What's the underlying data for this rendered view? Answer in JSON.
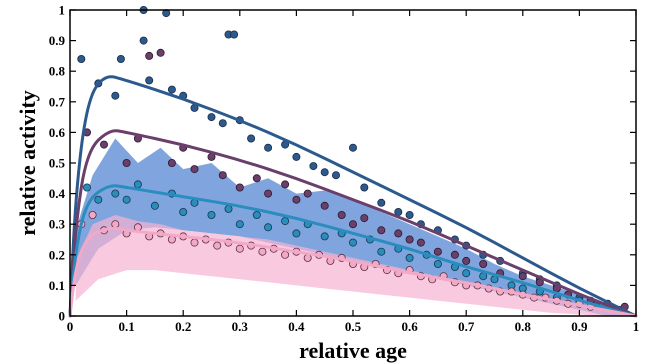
{
  "chart_data": {
    "type": "scatter",
    "xlabel": "relative age",
    "ylabel": "relative activity",
    "xlim": [
      0,
      1
    ],
    "ylim": [
      0,
      1
    ],
    "x_ticks": [
      "0",
      "0.1",
      "0.2",
      "0.3",
      "0.4",
      "0.5",
      "0.6",
      "0.7",
      "0.8",
      "0.9",
      "1"
    ],
    "y_ticks": [
      "0",
      "0.1",
      "0.2",
      "0.3",
      "0.4",
      "0.5",
      "0.6",
      "0.7",
      "0.8",
      "0.9",
      "1"
    ],
    "grid": false,
    "series": [
      {
        "color": "#2d5a8e",
        "edge": "#1a2b45",
        "fit_curve": [
          [
            0,
            0
          ],
          [
            0.01,
            0.4
          ],
          [
            0.03,
            0.7
          ],
          [
            0.06,
            0.79
          ],
          [
            0.1,
            0.77
          ],
          [
            0.2,
            0.71
          ],
          [
            0.3,
            0.64
          ],
          [
            0.4,
            0.56
          ],
          [
            0.5,
            0.47
          ],
          [
            0.6,
            0.38
          ],
          [
            0.7,
            0.29
          ],
          [
            0.8,
            0.19
          ],
          [
            0.9,
            0.09
          ],
          [
            1,
            0
          ]
        ],
        "points": [
          [
            0.02,
            0.84
          ],
          [
            0.05,
            0.76
          ],
          [
            0.08,
            0.72
          ],
          [
            0.09,
            0.84
          ],
          [
            0.13,
            1.0
          ],
          [
            0.13,
            0.9
          ],
          [
            0.14,
            0.77
          ],
          [
            0.17,
            0.99
          ],
          [
            0.18,
            0.74
          ],
          [
            0.2,
            0.72
          ],
          [
            0.22,
            0.68
          ],
          [
            0.25,
            0.65
          ],
          [
            0.27,
            0.63
          ],
          [
            0.28,
            0.92
          ],
          [
            0.29,
            0.92
          ],
          [
            0.3,
            0.64
          ],
          [
            0.32,
            0.58
          ],
          [
            0.35,
            0.55
          ],
          [
            0.38,
            0.56
          ],
          [
            0.4,
            0.52
          ],
          [
            0.43,
            0.49
          ],
          [
            0.45,
            0.47
          ],
          [
            0.47,
            0.46
          ],
          [
            0.5,
            0.55
          ],
          [
            0.52,
            0.42
          ],
          [
            0.55,
            0.37
          ],
          [
            0.58,
            0.34
          ],
          [
            0.6,
            0.33
          ],
          [
            0.62,
            0.3
          ],
          [
            0.65,
            0.28
          ],
          [
            0.68,
            0.25
          ],
          [
            0.7,
            0.23
          ],
          [
            0.73,
            0.2
          ],
          [
            0.76,
            0.18
          ],
          [
            0.8,
            0.14
          ],
          [
            0.83,
            0.12
          ],
          [
            0.86,
            0.1
          ],
          [
            0.9,
            0.06
          ],
          [
            0.93,
            0.04
          ],
          [
            0.97,
            0.02
          ]
        ]
      },
      {
        "color": "#6a3f6b",
        "edge": "#2a1a2b",
        "fit_curve": [
          [
            0,
            0
          ],
          [
            0.01,
            0.3
          ],
          [
            0.03,
            0.54
          ],
          [
            0.07,
            0.61
          ],
          [
            0.1,
            0.6
          ],
          [
            0.2,
            0.56
          ],
          [
            0.3,
            0.51
          ],
          [
            0.4,
            0.45
          ],
          [
            0.5,
            0.38
          ],
          [
            0.6,
            0.31
          ],
          [
            0.7,
            0.23
          ],
          [
            0.8,
            0.15
          ],
          [
            0.9,
            0.07
          ],
          [
            1,
            0
          ]
        ],
        "points": [
          [
            0.03,
            0.6
          ],
          [
            0.06,
            0.56
          ],
          [
            0.1,
            0.5
          ],
          [
            0.12,
            0.58
          ],
          [
            0.14,
            0.85
          ],
          [
            0.16,
            0.86
          ],
          [
            0.18,
            0.5
          ],
          [
            0.2,
            0.55
          ],
          [
            0.22,
            0.48
          ],
          [
            0.25,
            0.52
          ],
          [
            0.27,
            0.46
          ],
          [
            0.3,
            0.42
          ],
          [
            0.33,
            0.45
          ],
          [
            0.35,
            0.4
          ],
          [
            0.38,
            0.43
          ],
          [
            0.4,
            0.38
          ],
          [
            0.42,
            0.4
          ],
          [
            0.45,
            0.36
          ],
          [
            0.48,
            0.33
          ],
          [
            0.5,
            0.3
          ],
          [
            0.52,
            0.32
          ],
          [
            0.55,
            0.28
          ],
          [
            0.58,
            0.27
          ],
          [
            0.6,
            0.25
          ],
          [
            0.62,
            0.24
          ],
          [
            0.65,
            0.21
          ],
          [
            0.68,
            0.2
          ],
          [
            0.7,
            0.18
          ],
          [
            0.73,
            0.17
          ],
          [
            0.76,
            0.14
          ],
          [
            0.8,
            0.13
          ],
          [
            0.83,
            0.11
          ],
          [
            0.86,
            0.09
          ],
          [
            0.88,
            0.07
          ],
          [
            0.92,
            0.05
          ],
          [
            0.95,
            0.04
          ],
          [
            0.98,
            0.03
          ]
        ]
      },
      {
        "color": "#2b8cbe",
        "edge": "#16384d",
        "band_color": "#4a7fd0",
        "band": [
          [
            0.01,
            0.28
          ],
          [
            0.04,
            0.46
          ],
          [
            0.08,
            0.58
          ],
          [
            0.12,
            0.5
          ],
          [
            0.16,
            0.55
          ],
          [
            0.2,
            0.48
          ],
          [
            0.25,
            0.5
          ],
          [
            0.3,
            0.42
          ],
          [
            0.35,
            0.45
          ],
          [
            0.4,
            0.4
          ],
          [
            0.45,
            0.41
          ],
          [
            0.5,
            0.38
          ],
          [
            0.55,
            0.34
          ],
          [
            0.6,
            0.3
          ],
          [
            0.65,
            0.26
          ],
          [
            0.7,
            0.22
          ],
          [
            0.75,
            0.17
          ],
          [
            0.8,
            0.13
          ],
          [
            0.85,
            0.1
          ],
          [
            0.9,
            0.07
          ],
          [
            0.95,
            0.04
          ],
          [
            1,
            0.0
          ],
          [
            0.95,
            0.0
          ],
          [
            0.9,
            0.02
          ],
          [
            0.85,
            0.04
          ],
          [
            0.8,
            0.06
          ],
          [
            0.75,
            0.08
          ],
          [
            0.7,
            0.1
          ],
          [
            0.65,
            0.12
          ],
          [
            0.6,
            0.14
          ],
          [
            0.55,
            0.16
          ],
          [
            0.5,
            0.18
          ],
          [
            0.45,
            0.2
          ],
          [
            0.4,
            0.22
          ],
          [
            0.35,
            0.24
          ],
          [
            0.3,
            0.26
          ],
          [
            0.25,
            0.27
          ],
          [
            0.2,
            0.28
          ],
          [
            0.15,
            0.29
          ],
          [
            0.1,
            0.28
          ],
          [
            0.05,
            0.22
          ],
          [
            0.01,
            0.1
          ]
        ],
        "fit_curve": [
          [
            0,
            0
          ],
          [
            0.01,
            0.22
          ],
          [
            0.03,
            0.38
          ],
          [
            0.07,
            0.43
          ],
          [
            0.1,
            0.42
          ],
          [
            0.2,
            0.39
          ],
          [
            0.3,
            0.36
          ],
          [
            0.4,
            0.32
          ],
          [
            0.5,
            0.27
          ],
          [
            0.6,
            0.22
          ],
          [
            0.7,
            0.16
          ],
          [
            0.8,
            0.11
          ],
          [
            0.9,
            0.05
          ],
          [
            1,
            0
          ]
        ],
        "points": [
          [
            0.03,
            0.42
          ],
          [
            0.05,
            0.38
          ],
          [
            0.08,
            0.4
          ],
          [
            0.1,
            0.38
          ],
          [
            0.12,
            0.43
          ],
          [
            0.15,
            0.36
          ],
          [
            0.18,
            0.4
          ],
          [
            0.2,
            0.34
          ],
          [
            0.22,
            0.37
          ],
          [
            0.25,
            0.33
          ],
          [
            0.28,
            0.35
          ],
          [
            0.3,
            0.3
          ],
          [
            0.33,
            0.33
          ],
          [
            0.35,
            0.29
          ],
          [
            0.38,
            0.31
          ],
          [
            0.4,
            0.27
          ],
          [
            0.42,
            0.3
          ],
          [
            0.45,
            0.26
          ],
          [
            0.48,
            0.27
          ],
          [
            0.5,
            0.24
          ],
          [
            0.53,
            0.25
          ],
          [
            0.55,
            0.21
          ],
          [
            0.58,
            0.22
          ],
          [
            0.6,
            0.19
          ],
          [
            0.63,
            0.2
          ],
          [
            0.65,
            0.17
          ],
          [
            0.68,
            0.16
          ],
          [
            0.7,
            0.14
          ],
          [
            0.73,
            0.13
          ],
          [
            0.75,
            0.12
          ],
          [
            0.78,
            0.1
          ],
          [
            0.8,
            0.09
          ],
          [
            0.83,
            0.08
          ],
          [
            0.86,
            0.06
          ],
          [
            0.9,
            0.05
          ],
          [
            0.94,
            0.03
          ]
        ]
      },
      {
        "color": "#f2a9c8",
        "edge": "#5a2f3f",
        "band_color": "#f7b3d2",
        "band": [
          [
            0.01,
            0.18
          ],
          [
            0.04,
            0.3
          ],
          [
            0.08,
            0.33
          ],
          [
            0.12,
            0.31
          ],
          [
            0.16,
            0.3
          ],
          [
            0.2,
            0.28
          ],
          [
            0.25,
            0.27
          ],
          [
            0.3,
            0.26
          ],
          [
            0.35,
            0.25
          ],
          [
            0.4,
            0.23
          ],
          [
            0.45,
            0.21
          ],
          [
            0.5,
            0.19
          ],
          [
            0.55,
            0.17
          ],
          [
            0.6,
            0.15
          ],
          [
            0.65,
            0.13
          ],
          [
            0.7,
            0.11
          ],
          [
            0.75,
            0.09
          ],
          [
            0.8,
            0.07
          ],
          [
            0.85,
            0.05
          ],
          [
            0.9,
            0.03
          ],
          [
            0.95,
            0.015
          ],
          [
            1,
            0.0
          ],
          [
            0.95,
            0.0
          ],
          [
            0.9,
            0.005
          ],
          [
            0.85,
            0.01
          ],
          [
            0.8,
            0.02
          ],
          [
            0.75,
            0.03
          ],
          [
            0.7,
            0.04
          ],
          [
            0.65,
            0.05
          ],
          [
            0.6,
            0.06
          ],
          [
            0.55,
            0.07
          ],
          [
            0.5,
            0.08
          ],
          [
            0.45,
            0.09
          ],
          [
            0.4,
            0.1
          ],
          [
            0.35,
            0.11
          ],
          [
            0.3,
            0.12
          ],
          [
            0.25,
            0.13
          ],
          [
            0.2,
            0.14
          ],
          [
            0.15,
            0.15
          ],
          [
            0.1,
            0.15
          ],
          [
            0.05,
            0.12
          ],
          [
            0.01,
            0.05
          ]
        ],
        "fit_curve": [
          [
            0,
            0
          ],
          [
            0.01,
            0.16
          ],
          [
            0.03,
            0.26
          ],
          [
            0.07,
            0.29
          ],
          [
            0.1,
            0.28
          ],
          [
            0.2,
            0.26
          ],
          [
            0.3,
            0.24
          ],
          [
            0.4,
            0.21
          ],
          [
            0.5,
            0.18
          ],
          [
            0.6,
            0.14
          ],
          [
            0.7,
            0.11
          ],
          [
            0.8,
            0.07
          ],
          [
            0.9,
            0.035
          ],
          [
            1,
            0
          ]
        ],
        "points": [
          [
            0.02,
            0.3
          ],
          [
            0.04,
            0.33
          ],
          [
            0.06,
            0.28
          ],
          [
            0.08,
            0.3
          ],
          [
            0.1,
            0.27
          ],
          [
            0.12,
            0.29
          ],
          [
            0.14,
            0.26
          ],
          [
            0.16,
            0.27
          ],
          [
            0.18,
            0.25
          ],
          [
            0.2,
            0.26
          ],
          [
            0.22,
            0.24
          ],
          [
            0.24,
            0.25
          ],
          [
            0.26,
            0.23
          ],
          [
            0.28,
            0.24
          ],
          [
            0.3,
            0.22
          ],
          [
            0.32,
            0.23
          ],
          [
            0.34,
            0.21
          ],
          [
            0.36,
            0.22
          ],
          [
            0.38,
            0.2
          ],
          [
            0.4,
            0.21
          ],
          [
            0.42,
            0.19
          ],
          [
            0.44,
            0.2
          ],
          [
            0.46,
            0.18
          ],
          [
            0.48,
            0.19
          ],
          [
            0.5,
            0.17
          ],
          [
            0.52,
            0.16
          ],
          [
            0.54,
            0.17
          ],
          [
            0.56,
            0.15
          ],
          [
            0.58,
            0.14
          ],
          [
            0.6,
            0.15
          ],
          [
            0.62,
            0.13
          ],
          [
            0.64,
            0.12
          ],
          [
            0.66,
            0.13
          ],
          [
            0.68,
            0.11
          ],
          [
            0.7,
            0.1
          ],
          [
            0.72,
            0.1
          ],
          [
            0.74,
            0.09
          ],
          [
            0.76,
            0.08
          ],
          [
            0.78,
            0.08
          ],
          [
            0.8,
            0.07
          ],
          [
            0.82,
            0.06
          ],
          [
            0.84,
            0.06
          ],
          [
            0.86,
            0.05
          ],
          [
            0.88,
            0.04
          ],
          [
            0.9,
            0.04
          ],
          [
            0.92,
            0.03
          ]
        ]
      }
    ]
  }
}
